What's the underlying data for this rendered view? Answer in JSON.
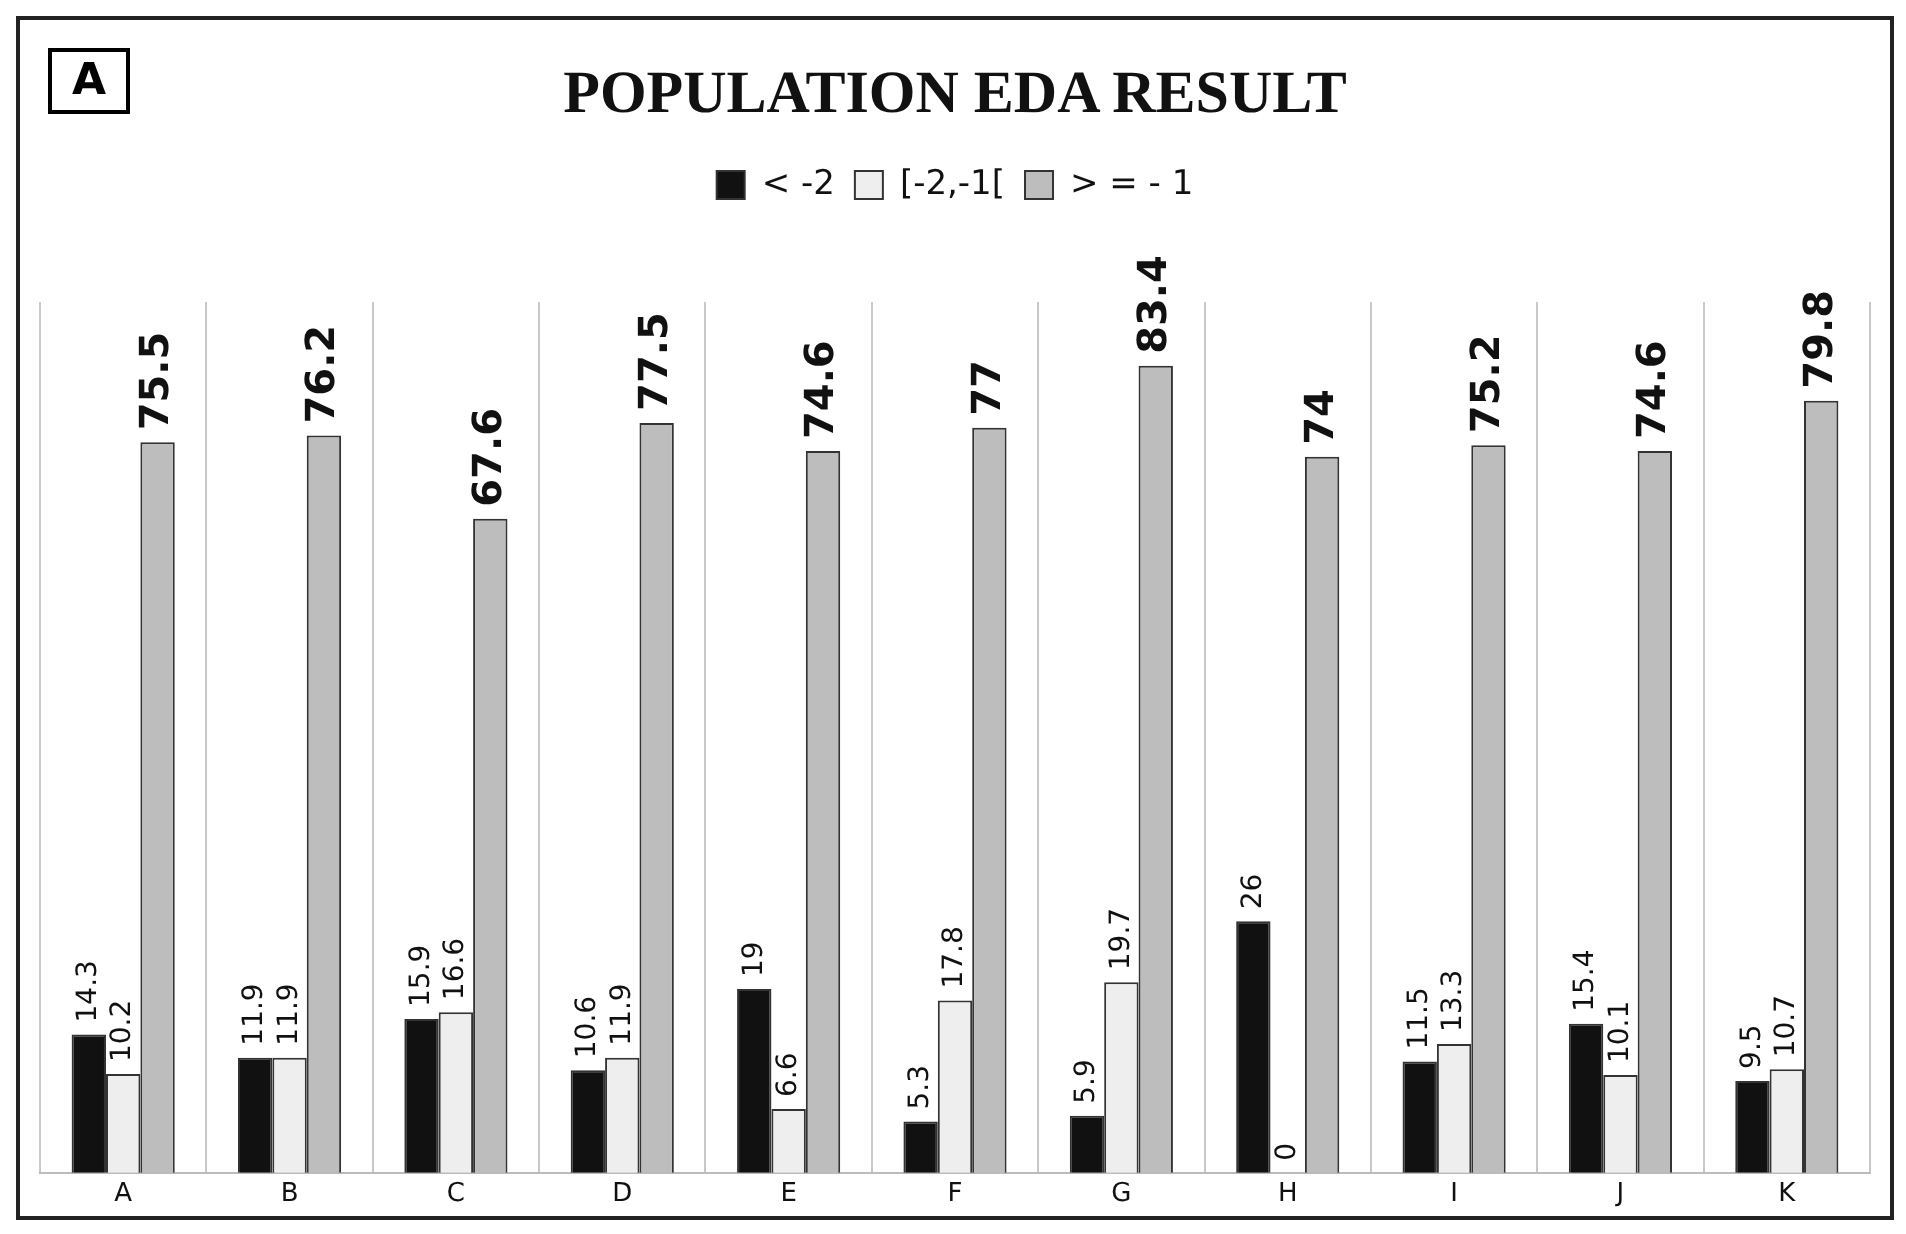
{
  "chart_data": {
    "type": "bar",
    "title": "POPULATION EDA RESULT",
    "annotations": [
      "A"
    ],
    "categories": [
      "A",
      "B",
      "C",
      "D",
      "E",
      "F",
      "G",
      "H",
      "I",
      "J",
      "K"
    ],
    "series": [
      {
        "name": "< -2",
        "color": "#111111",
        "values": [
          14.3,
          11.9,
          15.9,
          10.6,
          19,
          5.3,
          5.9,
          26,
          11.5,
          15.4,
          9.5
        ]
      },
      {
        "name": "[-2,-1[",
        "color": "#eeeeee",
        "values": [
          10.2,
          11.9,
          16.6,
          11.9,
          6.6,
          17.8,
          19.7,
          0,
          13.3,
          10.1,
          10.7
        ]
      },
      {
        "name": "> = - 1",
        "color": "#bdbdbd",
        "values": [
          75.5,
          76.2,
          67.6,
          77.5,
          74.6,
          77,
          83.4,
          74,
          75.2,
          74.6,
          79.8
        ]
      }
    ],
    "data_labels": true,
    "grid": "x",
    "legend": "top",
    "tick_labels": "x"
  }
}
